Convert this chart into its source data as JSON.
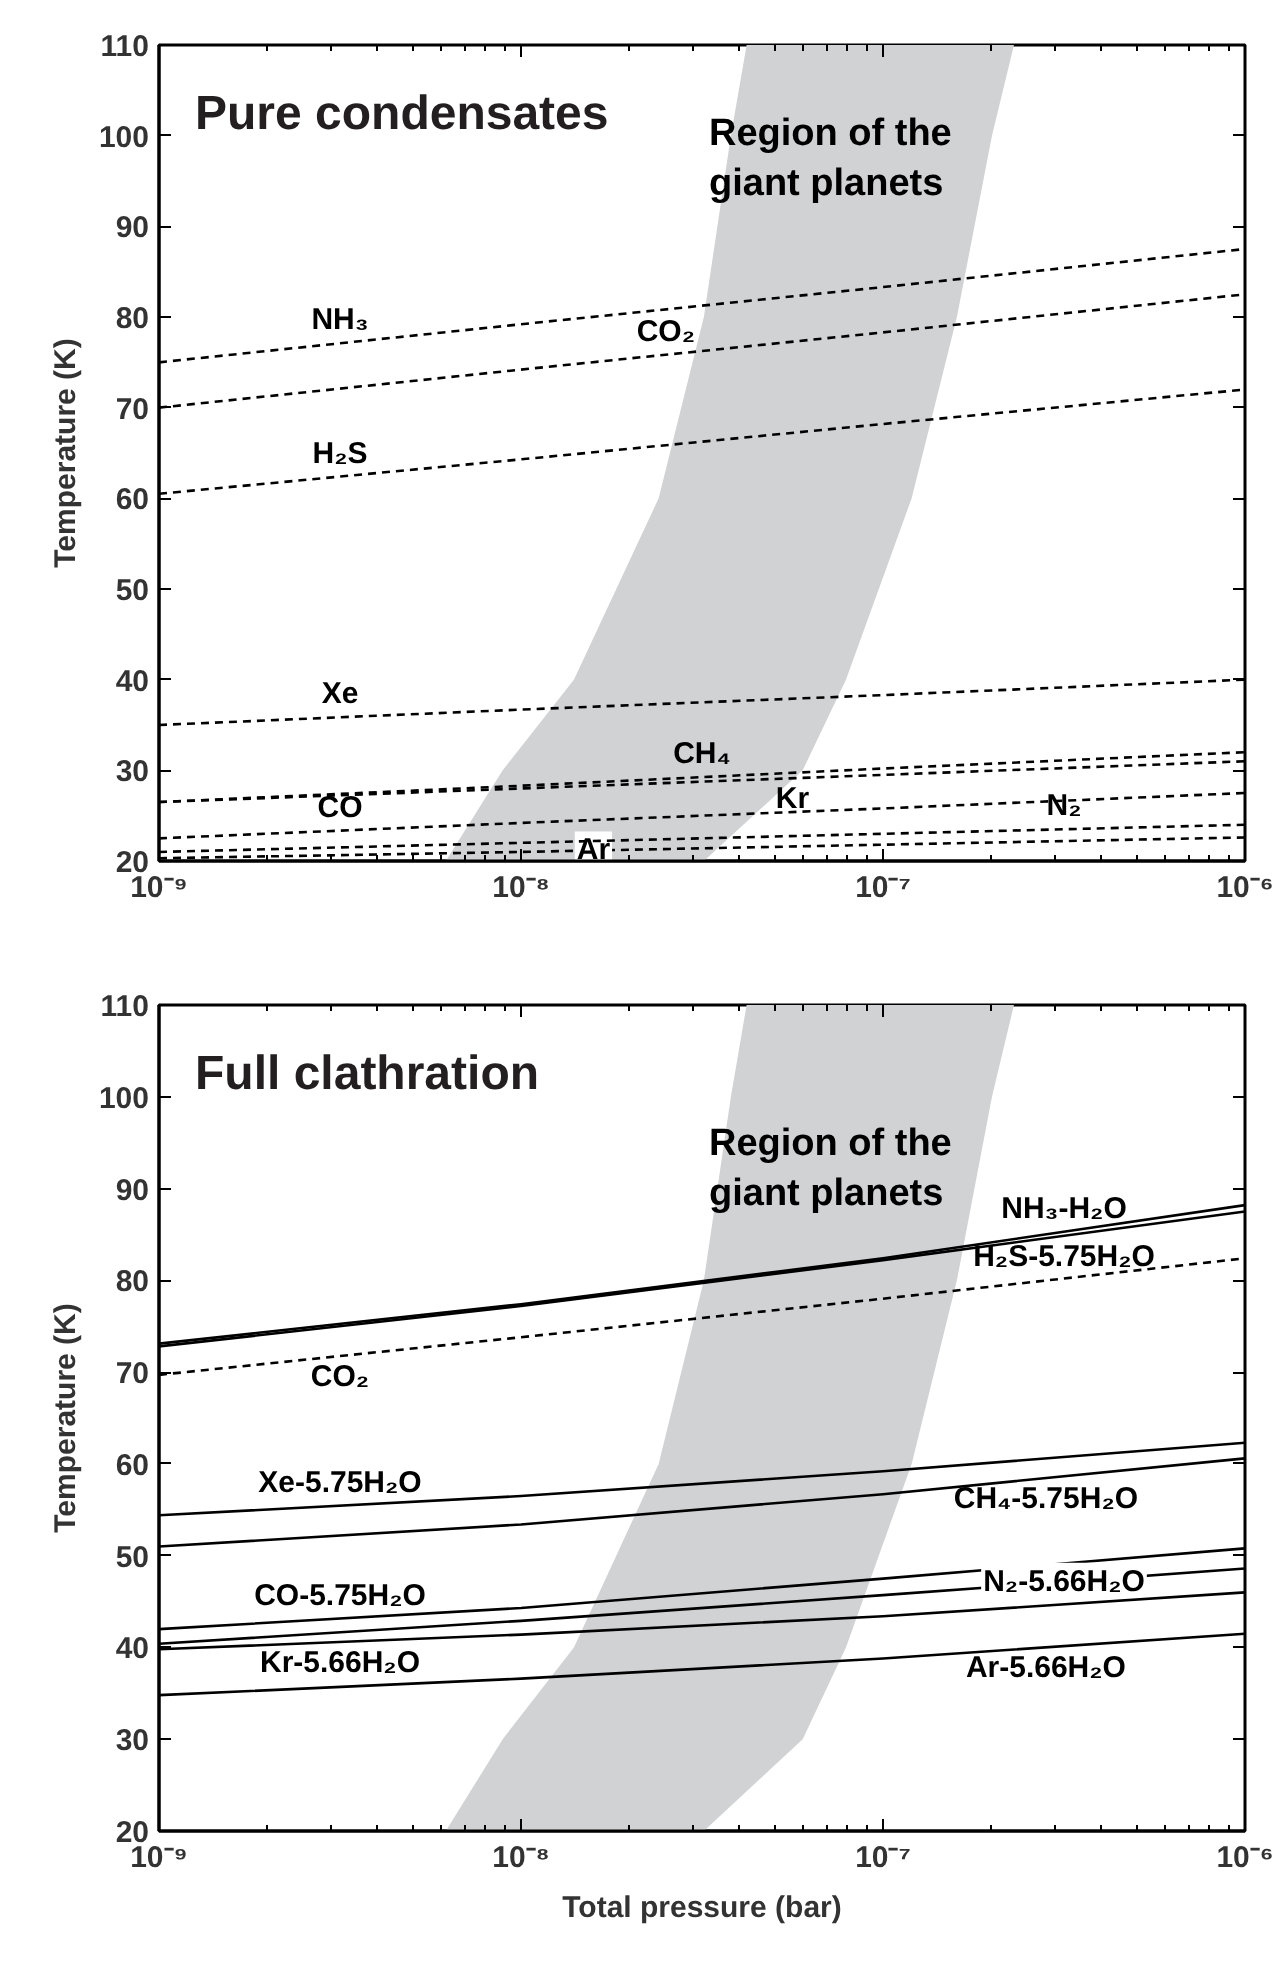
{
  "chart_data": [
    {
      "type": "line",
      "title": "Pure condensates",
      "ylabel": "Temperature (K)",
      "x": [
        1e-09,
        1e-08,
        1e-07,
        1e-06
      ],
      "xlim": [
        1e-09,
        1e-06
      ],
      "ylim": [
        20,
        110
      ],
      "log": "x",
      "grid": false,
      "marker": "none",
      "xticks": [
        {
          "value": 1e-09,
          "label": "10⁻⁹"
        },
        {
          "value": 1e-08,
          "label": "10⁻⁸"
        },
        {
          "value": 1e-07,
          "label": "10⁻⁷"
        },
        {
          "value": 1e-06,
          "label": "10⁻⁶"
        }
      ],
      "yticks": [
        20,
        30,
        40,
        50,
        60,
        70,
        80,
        90,
        100,
        110
      ],
      "annotations": [
        "Region of the\ngiant planets"
      ],
      "series": [
        {
          "type": "area",
          "color": "#d1d2d4",
          "x": [
            6.2e-09,
            8.9e-09,
            1.4e-08,
            2.4e-08,
            3.2e-08,
            3.8e-08,
            4.2e-08,
            2.3e-07,
            2e-07,
            1.6e-07,
            1.2e-07,
            7.9e-08,
            6e-08,
            3.2e-08
          ],
          "values": [
            20,
            30,
            40,
            60,
            80,
            100,
            110,
            110,
            100,
            80,
            60,
            40,
            30,
            20
          ]
        },
        {
          "name": "NH₃",
          "color": "#000000",
          "line_style": "dashed",
          "values": [
            75,
            79.2,
            83.3,
            87.5
          ]
        },
        {
          "name": "CO₂",
          "color": "#000000",
          "line_style": "dashed",
          "values": [
            70,
            74.2,
            78.3,
            82.5
          ]
        },
        {
          "name": "H₂S",
          "color": "#000000",
          "line_style": "dashed",
          "values": [
            60.5,
            64.3,
            68.2,
            72
          ]
        },
        {
          "name": "Xe",
          "color": "#000000",
          "line_style": "dashed",
          "values": [
            35,
            36.7,
            38.3,
            40
          ]
        },
        {
          "name": "CH₄",
          "color": "#000000",
          "line_style": "dashed",
          "values": [
            26.5,
            28.3,
            30.2,
            32
          ]
        },
        {
          "name": "Kr",
          "color": "#000000",
          "line_style": "dashed",
          "values": [
            26.5,
            28,
            29.5,
            31
          ]
        },
        {
          "name": "CO",
          "color": "#000000",
          "line_style": "dashed",
          "values": [
            22.5,
            24.2,
            25.8,
            27.5
          ]
        },
        {
          "name": "Ar",
          "color": "#000000",
          "line_style": "dashed",
          "values": [
            20.3,
            21,
            21.8,
            22.6
          ]
        },
        {
          "name": "N₂",
          "color": "#000000",
          "line_style": "dashed",
          "values": [
            21,
            22,
            23,
            24
          ]
        }
      ]
    },
    {
      "type": "line",
      "title": "Full clathration",
      "xlabel": "Total pressure (bar)",
      "ylabel": "Temperature (K)",
      "x": [
        1e-09,
        1e-08,
        1e-07,
        1e-06
      ],
      "xlim": [
        1e-09,
        1e-06
      ],
      "ylim": [
        20,
        110
      ],
      "log": "x",
      "grid": false,
      "marker": "none",
      "xticks": [
        {
          "value": 1e-09,
          "label": "10⁻⁹"
        },
        {
          "value": 1e-08,
          "label": "10⁻⁸"
        },
        {
          "value": 1e-07,
          "label": "10⁻⁷"
        },
        {
          "value": 1e-06,
          "label": "10⁻⁶"
        }
      ],
      "yticks": [
        20,
        30,
        40,
        50,
        60,
        70,
        80,
        90,
        100,
        110
      ],
      "annotations": [
        "Region of the\ngiant planets"
      ],
      "series": [
        {
          "type": "area",
          "color": "#d1d2d4",
          "x": [
            6.2e-09,
            8.9e-09,
            1.4e-08,
            2.4e-08,
            3.2e-08,
            3.8e-08,
            4.2e-08,
            2.3e-07,
            2e-07,
            1.6e-07,
            1.2e-07,
            7.9e-08,
            6e-08,
            3.2e-08
          ],
          "values": [
            20,
            30,
            40,
            60,
            80,
            100,
            110,
            110,
            100,
            80,
            60,
            40,
            30,
            20
          ]
        },
        {
          "name": "NH₃-H₂O",
          "color": "#000000",
          "line_style": "solid",
          "values": [
            73.1,
            77.4,
            82.4,
            88.2
          ]
        },
        {
          "name": "H₂S-5.75H₂O",
          "color": "#000000",
          "line_style": "solid",
          "values": [
            72.8,
            77.2,
            82.2,
            87.5
          ]
        },
        {
          "name": "CO₂",
          "color": "#000000",
          "line_style": "dashed",
          "values": [
            69.7,
            73.8,
            78,
            82.4
          ]
        },
        {
          "name": "Xe-5.75H₂O",
          "color": "#000000",
          "line_style": "solid",
          "values": [
            54.4,
            56.5,
            59.2,
            62.3
          ]
        },
        {
          "name": "CH₄-5.75H₂O",
          "color": "#000000",
          "line_style": "solid",
          "values": [
            51,
            53.4,
            56.7,
            60.6
          ]
        },
        {
          "name": "CO-5.75H₂O",
          "color": "#000000",
          "line_style": "solid",
          "values": [
            42,
            44.3,
            47.5,
            50.8
          ]
        },
        {
          "name": "N₂-5.66H₂O",
          "color": "#000000",
          "line_style": "solid",
          "values": [
            40.4,
            42.9,
            45.7,
            48.6
          ]
        },
        {
          "name": "Kr-5.66H₂O",
          "color": "#000000",
          "line_style": "solid",
          "values": [
            39.8,
            41.4,
            43.4,
            46
          ]
        },
        {
          "name": "Ar-5.66H₂O",
          "color": "#000000",
          "line_style": "solid",
          "values": [
            34.8,
            36.6,
            38.8,
            41.5
          ]
        }
      ]
    }
  ]
}
